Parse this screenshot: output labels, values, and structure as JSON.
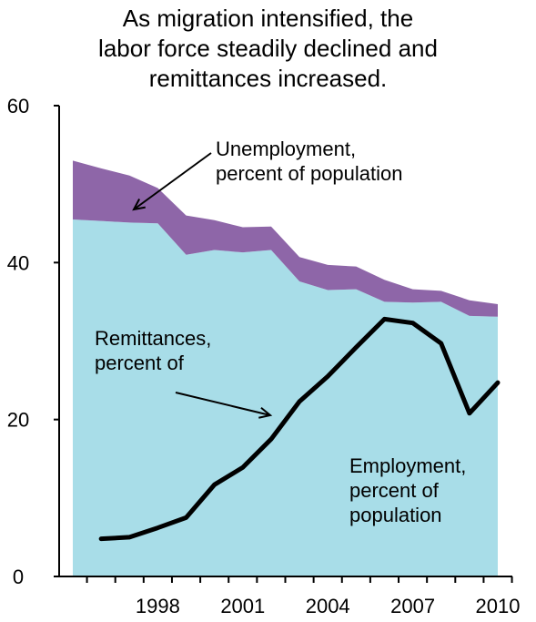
{
  "title_lines": [
    "As migration intensified, the",
    "labor force steadily declined and",
    "remittances increased."
  ],
  "annotations": {
    "unemployment": [
      "Unemployment,",
      "percent of population"
    ],
    "remittances": [
      "Remittances,",
      "percent of"
    ],
    "employment": [
      "Employment,",
      "percent of",
      "population"
    ]
  },
  "colors": {
    "employment": "#a8dde8",
    "unemployment": "#8e66a8",
    "remittances": "#000000"
  },
  "chart_data": {
    "type": "area",
    "title": "As migration intensified, the labor force steadily declined and remittances increased.",
    "x": [
      1995,
      1996,
      1997,
      1998,
      1999,
      2000,
      2001,
      2002,
      2003,
      2004,
      2005,
      2006,
      2007,
      2008,
      2009,
      2010
    ],
    "xlim": [
      1995,
      2010
    ],
    "x_tick_labels": [
      "1998",
      "2001",
      "2004",
      "2007",
      "2010"
    ],
    "x_tick_values": [
      1998,
      2001,
      2004,
      2007,
      2010
    ],
    "ylim": [
      0,
      60
    ],
    "y_ticks": [
      0,
      20,
      40,
      60
    ],
    "series": [
      {
        "name": "Employment, percent of population",
        "kind": "stacked-area",
        "values": [
          45.5,
          45.3,
          45.1,
          45.0,
          41.0,
          41.6,
          41.3,
          41.6,
          37.6,
          36.5,
          36.6,
          35.0,
          34.9,
          35.0,
          33.2,
          33.1
        ]
      },
      {
        "name": "Unemployment, percent of population",
        "kind": "stacked-area",
        "values": [
          7.5,
          6.7,
          6.0,
          4.5,
          5.0,
          3.8,
          3.2,
          3.0,
          3.1,
          3.2,
          2.9,
          2.8,
          1.7,
          1.4,
          2.0,
          1.6
        ]
      },
      {
        "name": "Remittances, percent of",
        "kind": "line",
        "x": [
          1996,
          1997,
          1998,
          1999,
          2000,
          2001,
          2002,
          2003,
          2004,
          2005,
          2006,
          2007,
          2008,
          2009,
          2010
        ],
        "values": [
          4.8,
          5.0,
          6.2,
          7.5,
          11.7,
          13.9,
          17.5,
          22.3,
          25.5,
          29.2,
          32.8,
          32.3,
          29.7,
          20.8,
          24.7
        ]
      }
    ],
    "grid": false,
    "legend": "none"
  }
}
